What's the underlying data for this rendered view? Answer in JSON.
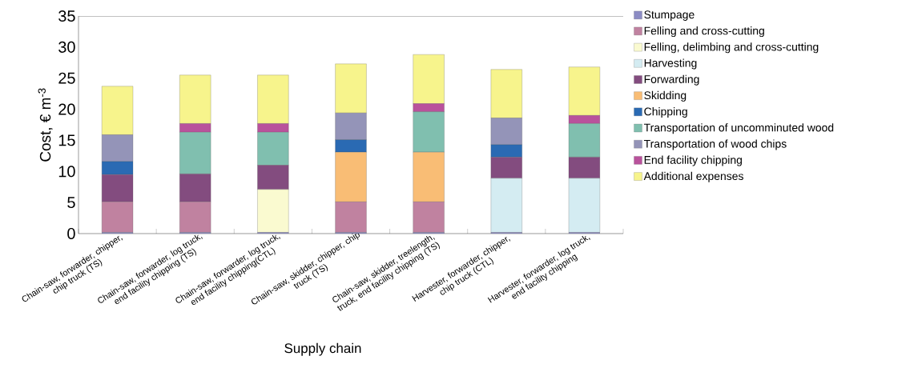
{
  "chart_data": {
    "type": "bar",
    "stacked": true,
    "xlabel": "Supply chain",
    "ylabel": "Cost, € m$^{-3}$",
    "categories": [
      "Chain-saw, forwarder, chipper, chip truck (TS)",
      "Chain-saw, forwarder, log truck, end facility chipping  (TS)",
      "Chain-saw, forwarder, log truck, end facility chipping(CTL)",
      "Chain-saw, skidder, chipper, chip truck (TS)",
      "Chain-saw, skidder, treelength, truck, end facility chipping (TS)",
      "Harvester, forwarder, chipper, chip truck (CTL)",
      "Harvester, forwarder, log truck, end facility chipping"
    ],
    "ylim": [
      0,
      35
    ],
    "yticks": [
      0,
      5,
      10,
      15,
      20,
      25,
      30,
      35
    ],
    "legend": "right",
    "series": [
      {
        "name": "Stumpage",
        "color": "#8c8cc4",
        "values": [
          0.2,
          0.2,
          0.2,
          0.2,
          0.2,
          0.2,
          0.2
        ]
      },
      {
        "name": "Felling and cross-cutting",
        "color": "#c082a0",
        "values": [
          4.9,
          4.9,
          null,
          4.9,
          4.9,
          null,
          null
        ]
      },
      {
        "name": "Felling, delimbing and cross-cutting",
        "color": "#fafad0",
        "values": [
          null,
          null,
          6.9,
          null,
          null,
          null,
          null
        ]
      },
      {
        "name": "Harvesting",
        "color": "#d4ecf2",
        "values": [
          null,
          null,
          null,
          null,
          null,
          8.7,
          8.7
        ]
      },
      {
        "name": "Forwarding",
        "color": "#834c7f",
        "values": [
          4.4,
          4.5,
          3.9,
          null,
          null,
          3.4,
          3.4
        ]
      },
      {
        "name": "Skidding",
        "color": "#f9bd75",
        "values": [
          null,
          null,
          null,
          8.0,
          8.0,
          null,
          null
        ]
      },
      {
        "name": "Chipping",
        "color": "#2a6ab3",
        "values": [
          2.1,
          null,
          null,
          2.0,
          null,
          2.0,
          null
        ]
      },
      {
        "name": "Transportation of uncomminuted wood",
        "color": "#80bfaf",
        "values": [
          null,
          6.7,
          5.3,
          null,
          6.5,
          null,
          5.4
        ]
      },
      {
        "name": "Transportation of wood chips",
        "color": "#9494b8",
        "values": [
          4.3,
          null,
          null,
          4.3,
          null,
          4.3,
          null
        ]
      },
      {
        "name": "End facility chipping",
        "color": "#b9529c",
        "values": [
          null,
          1.4,
          1.4,
          null,
          1.3,
          null,
          1.3
        ]
      },
      {
        "name": "Additional expenses",
        "color": "#f7f48c",
        "values": [
          7.8,
          7.8,
          7.8,
          7.9,
          7.9,
          7.8,
          7.8
        ]
      }
    ]
  }
}
